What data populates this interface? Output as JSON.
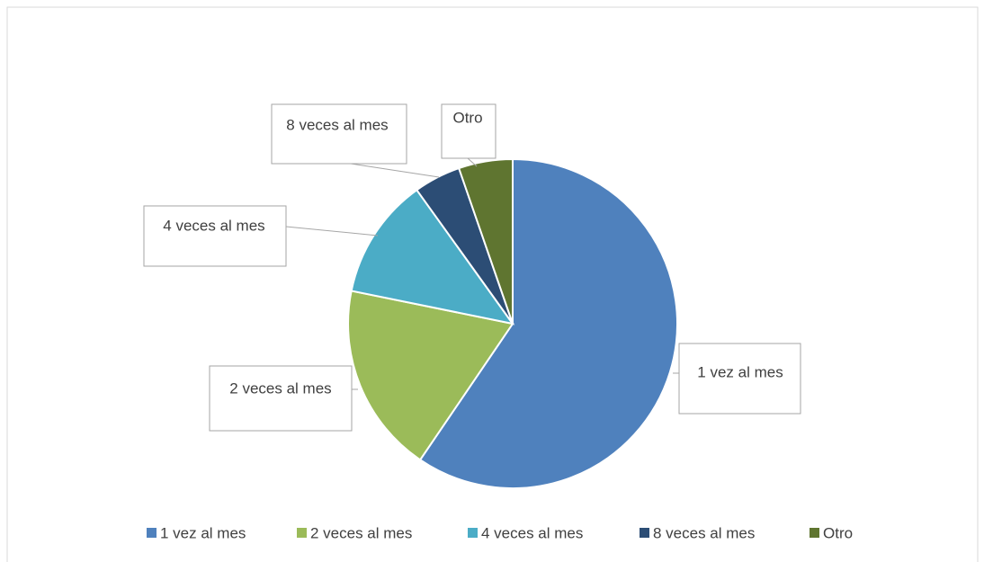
{
  "chart_data": {
    "type": "pie",
    "categories": [
      "1 vez al mes",
      "2 veces al mes",
      "4 veces al mes",
      "8 veces al mes",
      "Otro"
    ],
    "values": [
      59.5,
      18.7,
      11.9,
      4.6,
      5.3
    ],
    "colors": [
      "#4f81bd",
      "#9bbb59",
      "#4bacc6",
      "#2c4d75",
      "#5f7530"
    ],
    "legend": "bottom"
  }
}
